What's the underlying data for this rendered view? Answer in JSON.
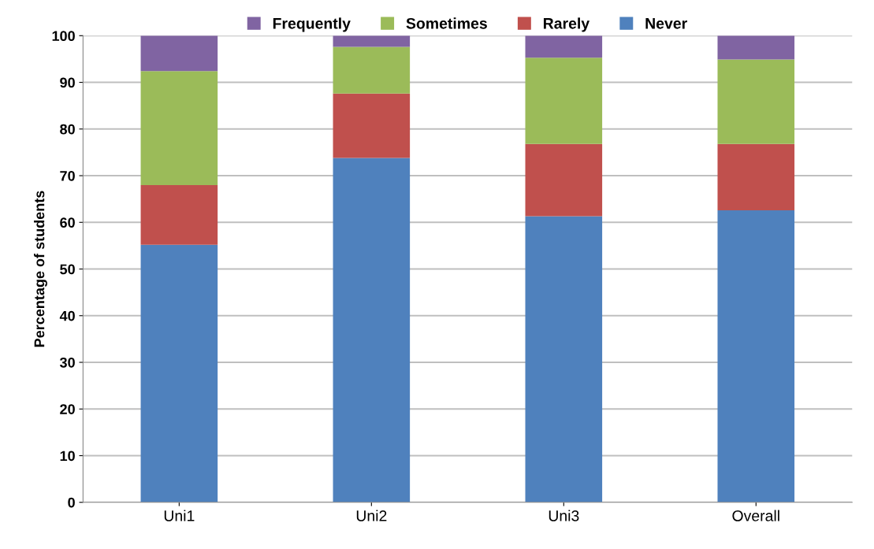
{
  "chart_data": {
    "type": "bar",
    "stacked": true,
    "ylabel": "Percentage of students",
    "categories": [
      "Uni1",
      "Uni2",
      "Uni3",
      "Overall"
    ],
    "series": [
      {
        "name": "Never",
        "color": "#4f81bd",
        "values": [
          55.2,
          73.8,
          61.3,
          62.6
        ]
      },
      {
        "name": "Rarely",
        "color": "#c0504d",
        "values": [
          12.8,
          13.8,
          15.5,
          14.2
        ]
      },
      {
        "name": "Sometimes",
        "color": "#9bbb59",
        "values": [
          24.4,
          10.0,
          18.5,
          18.1
        ]
      },
      {
        "name": "Frequently",
        "color": "#8064a2",
        "values": [
          7.6,
          2.4,
          4.7,
          5.1
        ]
      }
    ],
    "ylim": [
      0,
      100
    ],
    "yticks": [
      0,
      10,
      20,
      30,
      40,
      50,
      60,
      70,
      80,
      90,
      100
    ],
    "grid": "y",
    "legend": "top"
  }
}
